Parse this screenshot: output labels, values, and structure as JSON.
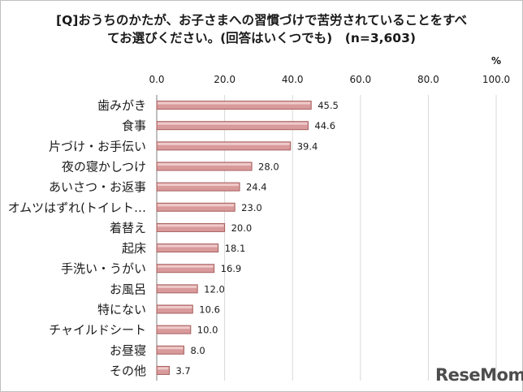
{
  "title_lines": [
    "[Q]おうちのかたが、お子さまへの習慣づけで苦労されていることをすべ",
    "てお選びください。(回答はいくつでも)　(n=3,603)"
  ],
  "watermark": "ReseMom",
  "colors": {
    "bar": "#d89a9a",
    "bar_edge": "#a85f5f",
    "grid": "#d9d9d9",
    "text": "#1a1a1a"
  },
  "chart_data": {
    "type": "bar",
    "orientation": "horizontal",
    "title": "[Q]おうちのかたが、お子さまへの習慣づけで苦労されていることをすべてお選びください。(回答はいくつでも)　(n=3,603)",
    "unit_label": "%",
    "xlim": [
      0,
      100
    ],
    "ticks": [
      "0.0",
      "20.0",
      "40.0",
      "60.0",
      "80.0",
      "100.0"
    ],
    "tick_values": [
      0,
      20,
      40,
      60,
      80,
      100
    ],
    "grid": true,
    "categories": [
      "歯みがき",
      "食事",
      "片づけ・お手伝い",
      "夜の寝かしつけ",
      "あいさつ・お返事",
      "オムツはずれ(トイレト…",
      "着替え",
      "起床",
      "手洗い・うがい",
      "お風呂",
      "特にない",
      "チャイルドシート",
      "お昼寝",
      "その他"
    ],
    "values": [
      45.5,
      44.6,
      39.4,
      28.0,
      24.4,
      23.0,
      20.0,
      18.1,
      16.9,
      12.0,
      10.6,
      10.0,
      8.0,
      3.7
    ],
    "value_labels": [
      "45.5",
      "44.6",
      "39.4",
      "28.0",
      "24.4",
      "23.0",
      "20.0",
      "18.1",
      "16.9",
      "12.0",
      "10.6",
      "10.0",
      "8.0",
      "3.7"
    ]
  }
}
